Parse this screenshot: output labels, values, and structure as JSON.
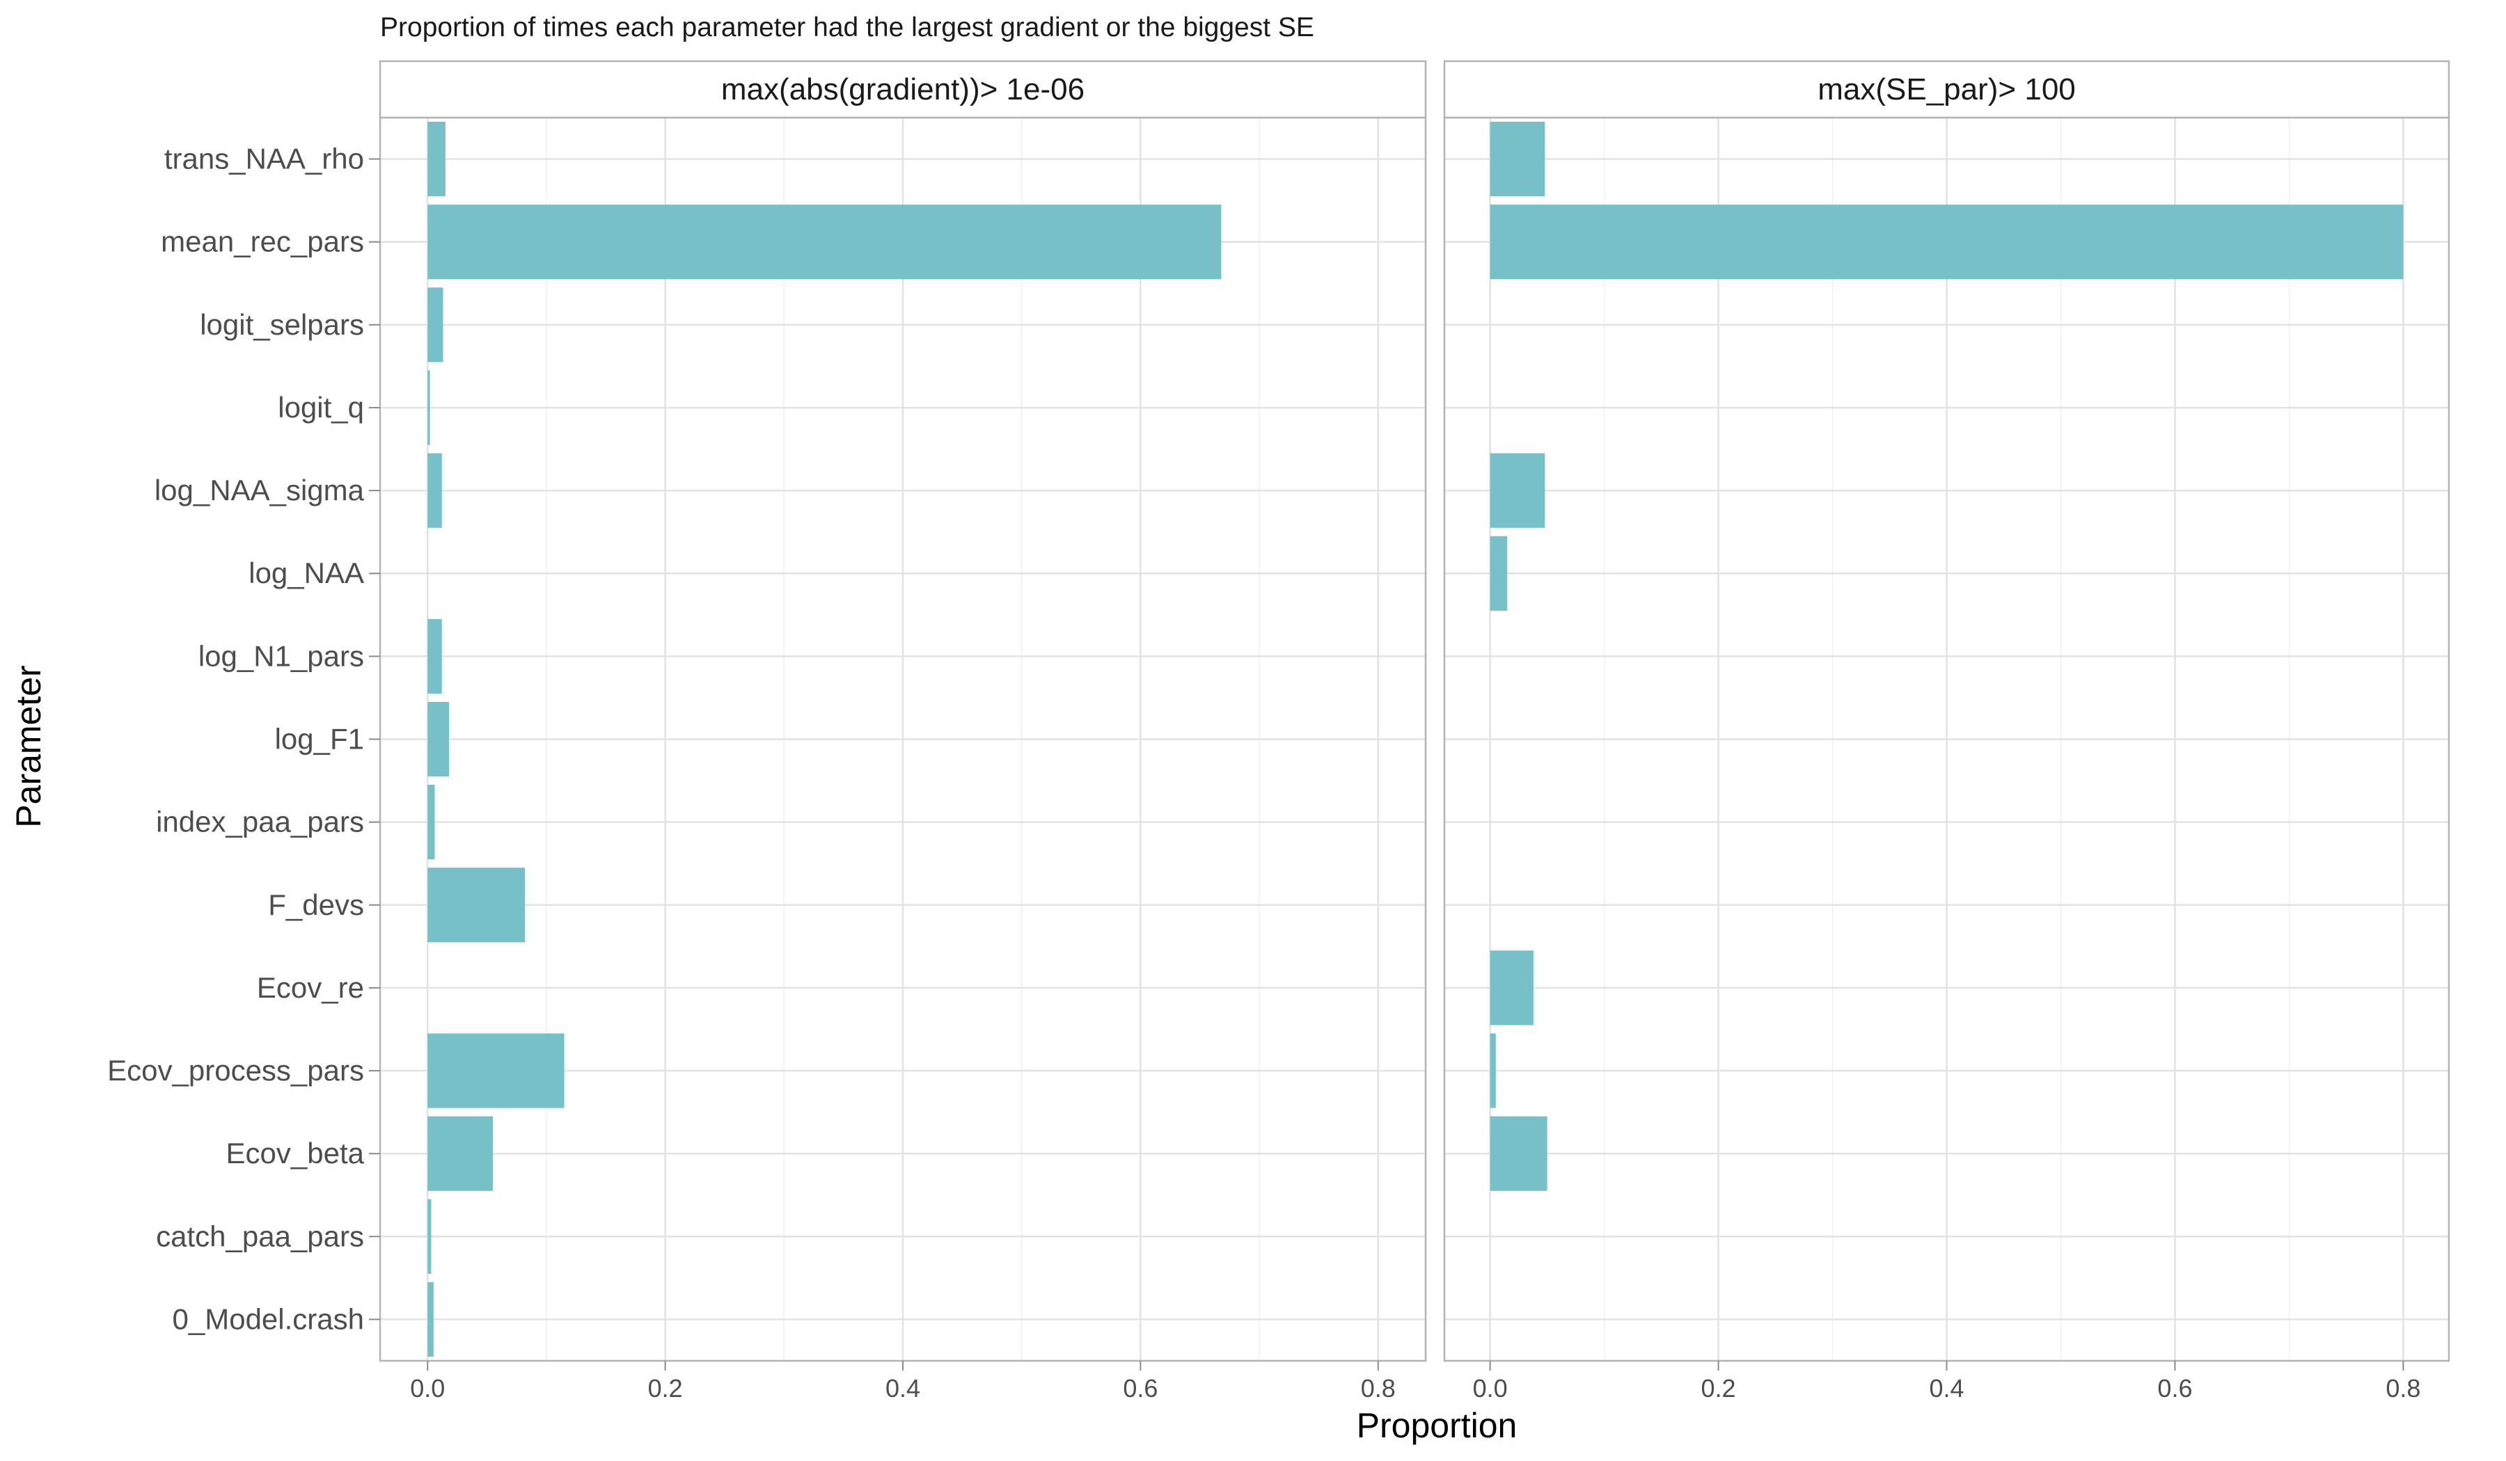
{
  "chart_data": {
    "type": "bar",
    "orientation": "horizontal",
    "title": "Proportion of times each parameter had the largest gradient or the biggest SE",
    "xlabel": "Proportion",
    "ylabel": "Parameter",
    "xlim": [
      -0.04,
      0.84
    ],
    "xticks": [
      0.0,
      0.2,
      0.4,
      0.6,
      0.8
    ],
    "xtick_labels": [
      "0.0",
      "0.2",
      "0.4",
      "0.6",
      "0.8"
    ],
    "grid": true,
    "bar_color": "#78c0c8",
    "categories": [
      "trans_NAA_rho",
      "mean_rec_pars",
      "logit_selpars",
      "logit_q",
      "log_NAA_sigma",
      "log_NAA",
      "log_N1_pars",
      "log_F1",
      "index_paa_pars",
      "F_devs",
      "Ecov_re",
      "Ecov_process_pars",
      "Ecov_beta",
      "catch_paa_pars",
      "0_Model.crash"
    ],
    "panels": [
      {
        "strip_label": "max(abs(gradient))> 1e-06",
        "values": [
          0.015,
          0.668,
          0.013,
          0.002,
          0.012,
          0.0,
          0.012,
          0.018,
          0.006,
          0.082,
          0.0,
          0.115,
          0.055,
          0.003,
          0.005
        ]
      },
      {
        "strip_label": "max(SE_par)> 100",
        "values": [
          0.048,
          0.8,
          0.0,
          0.0,
          0.048,
          0.015,
          0.0,
          0.0,
          0.0,
          0.0,
          0.038,
          0.005,
          0.05,
          0.0,
          0.0
        ]
      }
    ]
  }
}
